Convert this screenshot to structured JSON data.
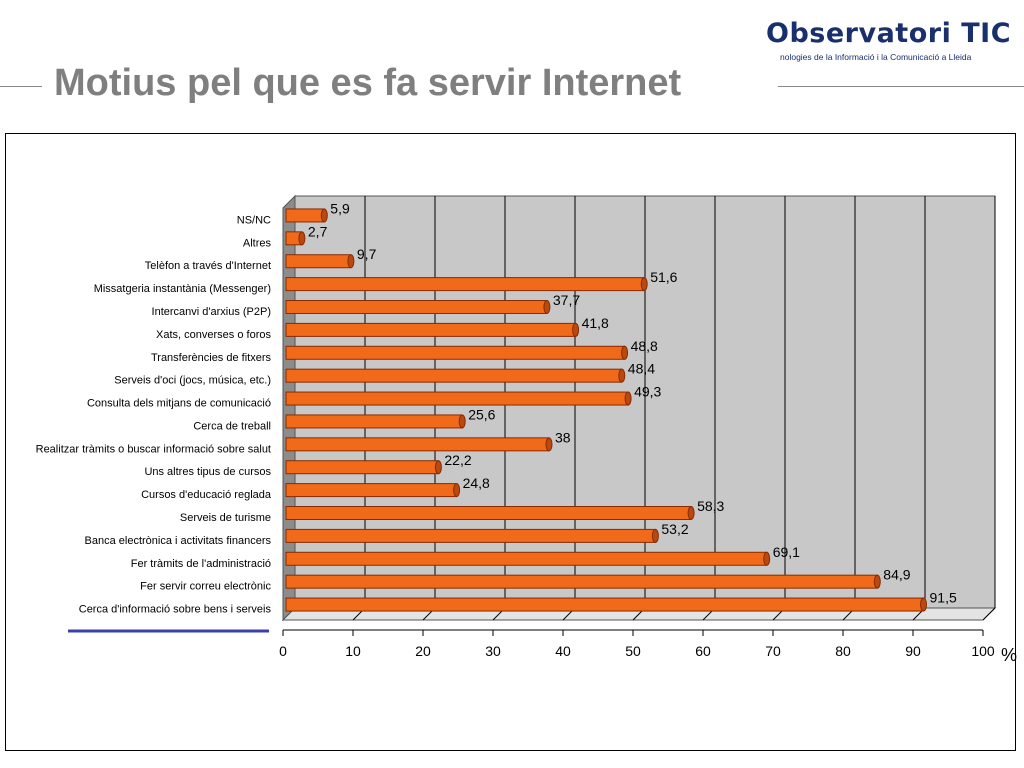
{
  "header": {
    "logo_text": "Observatori TIC",
    "logo_subtext": "nologies de la Informació i la Comunicació a Lleida",
    "title": "Motius pel que es fa servir Internet"
  },
  "chart_data": {
    "type": "bar",
    "orientation": "horizontal",
    "categories": [
      "NS/NC",
      "Altres",
      "Telèfon a través d'Internet",
      "Missatgeria instantània (Messenger)",
      "Intercanvi d'arxius (P2P)",
      "Xats, converses o foros",
      "Transferències de fitxers",
      "Serveis d'oci (jocs, música, etc.)",
      "Consulta dels mitjans de comunicació",
      "Cerca de treball",
      "Realitzar tràmits o buscar informació sobre salut",
      "Uns altres tipus de cursos",
      "Cursos d'educació reglada",
      "Serveis de turisme",
      "Banca electrònica i activitats financers",
      "Fer tràmits de l'administració",
      "Fer servir correu electrònic",
      "Cerca d'informació sobre bens i serveis"
    ],
    "values": [
      5.9,
      2.7,
      9.7,
      51.6,
      37.7,
      41.8,
      48.8,
      48.4,
      49.3,
      25.6,
      38,
      22.2,
      24.8,
      58.3,
      53.2,
      69.1,
      84.9,
      91.5
    ],
    "value_labels": [
      "5,9",
      "2,7",
      "9,7",
      "51,6",
      "37,7",
      "41,8",
      "48,8",
      "48,4",
      "49,3",
      "25,6",
      "38",
      "22,2",
      "24,8",
      "58,3",
      "53,2",
      "69,1",
      "84,9",
      "91,5"
    ],
    "x_ticks": [
      "0",
      "10",
      "20",
      "30",
      "40",
      "50",
      "60",
      "70",
      "80",
      "90",
      "100"
    ],
    "xlim": [
      0,
      100
    ],
    "xlabel": "%",
    "grid": true,
    "colors": {
      "bar": "#f06a1a",
      "bar_edge": "#8a2a00",
      "bar_cap": "#b84a10",
      "plot_bg": "#c8c8c8",
      "wall_side": "#8c8c8c",
      "legend_line": "#3a3fb0"
    }
  }
}
